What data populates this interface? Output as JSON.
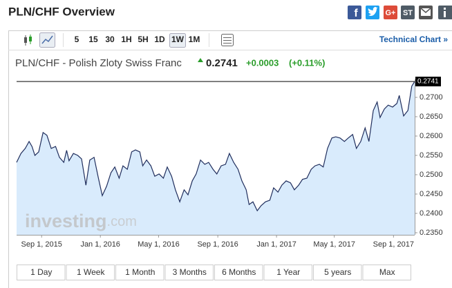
{
  "header": {
    "title": "PLN/CHF Overview",
    "share_labels": [
      "f",
      "G+",
      "ST"
    ]
  },
  "toolbar": {
    "intervals": [
      "5",
      "15",
      "30",
      "1H",
      "5H",
      "1D",
      "1W",
      "1M"
    ],
    "selected_interval": 6,
    "link": "Technical Chart »"
  },
  "quote": {
    "name": "PLN/CHF - Polish Zloty Swiss Franc",
    "price": "0.2741",
    "change": "+0.0003",
    "change_percent": "(+0.11%)"
  },
  "chart_data": {
    "type": "area",
    "color": "#1f2d5c",
    "fill": "#d9ebfc",
    "watermark": [
      "investing",
      ".com"
    ],
    "x": [
      "2015-07-11",
      "2015-07-20",
      "2015-07-29",
      "2015-08-06",
      "2015-08-12",
      "2015-08-18",
      "2015-08-26",
      "2015-09-04",
      "2015-09-12",
      "2015-09-21",
      "2015-09-30",
      "2015-10-08",
      "2015-10-17",
      "2015-10-23",
      "2015-10-28",
      "2015-11-06",
      "2015-11-15",
      "2015-11-23",
      "2015-12-02",
      "2015-12-10",
      "2015-12-19",
      "2015-12-28",
      "2016-01-05",
      "2016-01-14",
      "2016-01-23",
      "2016-01-31",
      "2016-02-09",
      "2016-02-17",
      "2016-02-26",
      "2016-03-06",
      "2016-03-14",
      "2016-03-23",
      "2016-03-29",
      "2016-04-06",
      "2016-04-15",
      "2016-04-23",
      "2016-05-02",
      "2016-05-11",
      "2016-05-19",
      "2016-05-28",
      "2016-06-05",
      "2016-06-14",
      "2016-06-23",
      "2016-07-01",
      "2016-07-10",
      "2016-07-18",
      "2016-07-27",
      "2016-08-05",
      "2016-08-13",
      "2016-08-22",
      "2016-08-30",
      "2016-09-08",
      "2016-09-17",
      "2016-09-25",
      "2016-10-04",
      "2016-10-13",
      "2016-10-21",
      "2016-10-30",
      "2016-11-05",
      "2016-11-13",
      "2016-11-22",
      "2016-11-30",
      "2016-12-09",
      "2016-12-18",
      "2016-12-26",
      "2017-01-04",
      "2017-01-12",
      "2017-01-21",
      "2017-01-30",
      "2017-02-07",
      "2017-02-16",
      "2017-02-24",
      "2017-03-05",
      "2017-03-14",
      "2017-03-22",
      "2017-03-31",
      "2017-04-08",
      "2017-04-17",
      "2017-04-26",
      "2017-05-04",
      "2017-05-13",
      "2017-05-22",
      "2017-05-30",
      "2017-06-08",
      "2017-06-16",
      "2017-06-25",
      "2017-07-04",
      "2017-07-12",
      "2017-07-21",
      "2017-07-29",
      "2017-08-04",
      "2017-08-13",
      "2017-08-21",
      "2017-08-30",
      "2017-09-08",
      "2017-09-13",
      "2017-09-22",
      "2017-10-01",
      "2017-10-09",
      "2017-10-15"
    ],
    "values": [
      0.2532,
      0.2555,
      0.2568,
      0.2586,
      0.2573,
      0.255,
      0.2559,
      0.2609,
      0.2602,
      0.2568,
      0.2573,
      0.2545,
      0.2532,
      0.2563,
      0.2536,
      0.2555,
      0.255,
      0.2541,
      0.2473,
      0.2538,
      0.2545,
      0.2491,
      0.2446,
      0.247,
      0.2505,
      0.252,
      0.2491,
      0.2523,
      0.2514,
      0.2559,
      0.2564,
      0.2559,
      0.2523,
      0.2538,
      0.2523,
      0.2496,
      0.2502,
      0.2491,
      0.252,
      0.2496,
      0.2461,
      0.243,
      0.2461,
      0.2448,
      0.2484,
      0.2502,
      0.2538,
      0.2527,
      0.2532,
      0.2514,
      0.2502,
      0.2523,
      0.2527,
      0.2555,
      0.2532,
      0.2514,
      0.2484,
      0.2461,
      0.2423,
      0.243,
      0.2407,
      0.242,
      0.243,
      0.2434,
      0.2466,
      0.2455,
      0.2473,
      0.2484,
      0.2479,
      0.2461,
      0.2473,
      0.2488,
      0.2491,
      0.2514,
      0.2523,
      0.2527,
      0.252,
      0.2568,
      0.2595,
      0.2598,
      0.2595,
      0.2586,
      0.2595,
      0.2604,
      0.2568,
      0.2586,
      0.2621,
      0.2586,
      0.2666,
      0.2688,
      0.2648,
      0.267,
      0.268,
      0.2675,
      0.2684,
      0.2705,
      0.2652,
      0.2666,
      0.2729,
      0.2741
    ],
    "last_value_label": "0.2741",
    "xlim": [
      "2015-07-11",
      "2017-10-15"
    ],
    "xticks": [
      {
        "value": "2015-09-01",
        "label": "Sep 1, 2015"
      },
      {
        "value": "2016-01-01",
        "label": "Jan 1, 2016"
      },
      {
        "value": "2016-05-01",
        "label": "May 1, 2016"
      },
      {
        "value": "2016-09-01",
        "label": "Sep 1, 2016"
      },
      {
        "value": "2017-01-01",
        "label": "Jan 1, 2017"
      },
      {
        "value": "2017-05-01",
        "label": "May 1, 2017"
      },
      {
        "value": "2017-09-01",
        "label": "Sep 1, 2017"
      }
    ],
    "ylim": [
      0.23446,
      0.27464
    ],
    "yticks": [
      {
        "value": 0.235,
        "label": "0.2350"
      },
      {
        "value": 0.24,
        "label": "0.2400"
      },
      {
        "value": 0.245,
        "label": "0.2450"
      },
      {
        "value": 0.25,
        "label": "0.2500"
      },
      {
        "value": 0.255,
        "label": "0.2550"
      },
      {
        "value": 0.26,
        "label": "0.2600"
      },
      {
        "value": 0.265,
        "label": "0.2650"
      },
      {
        "value": 0.27,
        "label": "0.2700"
      }
    ],
    "grid": false
  },
  "ranges": [
    "1 Day",
    "1 Week",
    "1 Month",
    "3 Months",
    "6 Months",
    "1 Year",
    "5 years",
    "Max"
  ]
}
